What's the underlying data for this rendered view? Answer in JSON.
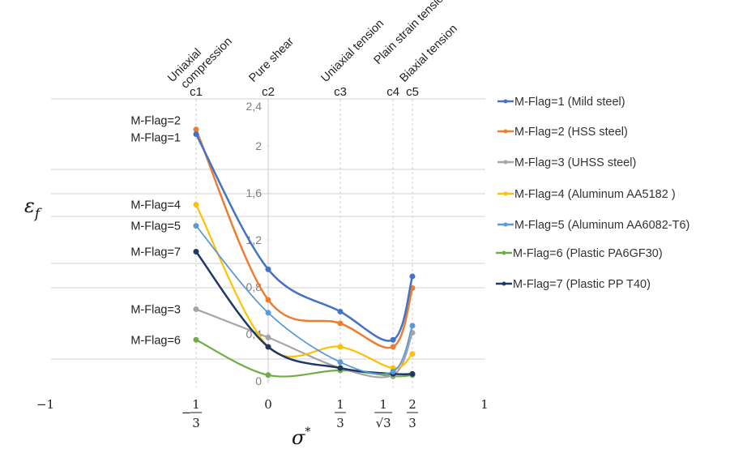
{
  "chart_data": {
    "type": "line",
    "title": "",
    "xlabel": "σ*",
    "ylabel": "ε_f",
    "xlim": [
      -1,
      1
    ],
    "ylim": [
      0,
      2.4
    ],
    "yticks": [
      "0",
      "0,4",
      "0,8",
      "1,2",
      "1,6",
      "2",
      "2,4"
    ],
    "ytick_values": [
      0,
      0.4,
      0.8,
      1.2,
      1.6,
      2.0,
      2.4
    ],
    "xticks": [
      {
        "value": -1,
        "label": "−1"
      },
      {
        "value": -0.3333,
        "label": "−1/3",
        "sign": "−",
        "num": "1",
        "den": "3"
      },
      {
        "value": 0,
        "label": "0"
      },
      {
        "value": 0.3333,
        "label": "1/3",
        "num": "1",
        "den": "3"
      },
      {
        "value": 0.5774,
        "label": "1/√3",
        "num": "1",
        "den": "√3"
      },
      {
        "value": 0.6667,
        "label": "2/3",
        "num": "2",
        "den": "3"
      },
      {
        "value": 1,
        "label": "1"
      }
    ],
    "grid": true,
    "legend_position": "right",
    "x": [
      -0.3333,
      0,
      0.3333,
      0.5774,
      0.6667
    ],
    "categories": [
      "c1",
      "c2",
      "c3",
      "c4",
      "c5"
    ],
    "stress_states": [
      "Uniaxial compression",
      "Pure shear",
      "Uniaxial tension",
      "Plain strain tension",
      "Biaxial tension"
    ],
    "stress_state_lines": [
      [
        "Uniaxial",
        "compression"
      ],
      [
        "Pure shear"
      ],
      [
        "Uniaxial tension"
      ],
      [
        "Plain strain tension"
      ],
      [
        "Biaxial tension"
      ]
    ],
    "series": [
      {
        "name": "M-Flag=1 (Mild steel)",
        "short": "M-Flag=1",
        "color": "#4472c4",
        "width": 2.5,
        "values": [
          2.1,
          0.95,
          0.59,
          0.35,
          0.89
        ]
      },
      {
        "name": "M-Flag=2 (HSS steel)",
        "short": "M-Flag=2",
        "color": "#ed7d31",
        "width": 2.5,
        "values": [
          2.14,
          0.69,
          0.49,
          0.29,
          0.79
        ]
      },
      {
        "name": "M-Flag=3 (UHSS steel)",
        "short": "M-Flag=3",
        "color": "#a5a5a5",
        "width": 2.2,
        "values": [
          0.61,
          0.37,
          0.11,
          0.05,
          0.41
        ]
      },
      {
        "name": "M-Flag=4 (Aluminum AA5182 )",
        "short": "M-Flag=4",
        "color": "#ffc000",
        "width": 2.2,
        "values": [
          1.5,
          0.29,
          0.29,
          0.11,
          0.23
        ]
      },
      {
        "name": "M-Flag=5 (Aluminum AA6082-T6)",
        "short": "M-Flag=5",
        "color": "#5b9bd5",
        "width": 1.8,
        "values": [
          1.32,
          0.58,
          0.16,
          0.08,
          0.47
        ]
      },
      {
        "name": "M-Flag=6 (Plastic PA6GF30)",
        "short": "M-Flag=6",
        "color": "#70ad47",
        "width": 2.2,
        "values": [
          0.35,
          0.05,
          0.09,
          0.04,
          0.05
        ]
      },
      {
        "name": "M-Flag=7 (Plastic PP T40)",
        "short": "M-Flag=7",
        "color": "#203864",
        "width": 2.5,
        "values": [
          1.1,
          0.29,
          0.11,
          0.06,
          0.06
        ]
      }
    ],
    "left_label_order": [
      "M-Flag=2",
      "M-Flag=1",
      "M-Flag=4",
      "M-Flag=5",
      "M-Flag=7",
      "M-Flag=3",
      "M-Flag=6"
    ]
  }
}
